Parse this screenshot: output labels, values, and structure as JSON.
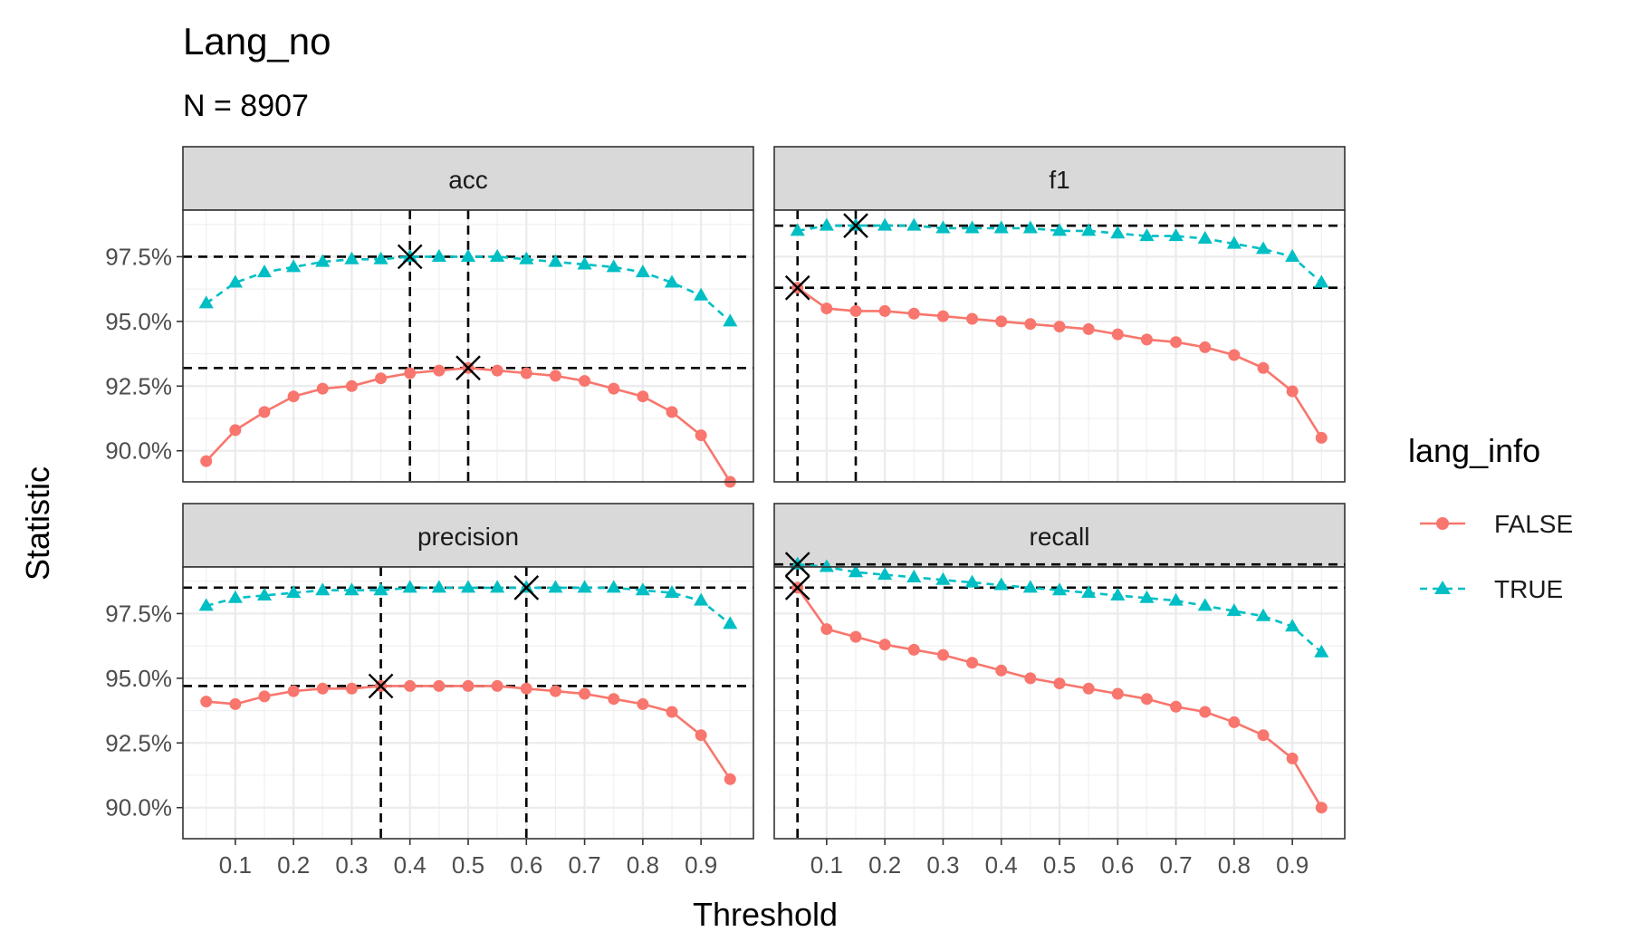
{
  "chart_data": {
    "type": "line",
    "title": "Lang_no",
    "subtitle": "N = 8907",
    "xlabel": "Threshold",
    "ylabel": "Statistic",
    "xlim": [
      0.01,
      0.99
    ],
    "ylim": [
      88.8,
      99.3
    ],
    "x_ticks": [
      0.1,
      0.2,
      0.3,
      0.4,
      0.5,
      0.6,
      0.7,
      0.8,
      0.9
    ],
    "x_tick_labels": [
      "0.1",
      "0.2",
      "0.3",
      "0.4",
      "0.5",
      "0.6",
      "0.7",
      "0.8",
      "0.9"
    ],
    "y_ticks": [
      90.0,
      92.5,
      95.0,
      97.5
    ],
    "y_tick_labels": [
      "90.0%",
      "92.5%",
      "95.0%",
      "97.5%"
    ],
    "grid": true,
    "legend": {
      "title": "lang_info",
      "position": "right",
      "entries": [
        "FALSE",
        "TRUE"
      ]
    },
    "colors": {
      "FALSE": "#F8766D",
      "TRUE": "#00BFC4"
    },
    "x": [
      0.05,
      0.1,
      0.15,
      0.2,
      0.25,
      0.3,
      0.35,
      0.4,
      0.45,
      0.5,
      0.55,
      0.6,
      0.65,
      0.7,
      0.75,
      0.8,
      0.85,
      0.9,
      0.95
    ],
    "panels": [
      {
        "name": "acc",
        "series": [
          {
            "name": "FALSE",
            "values": [
              89.6,
              90.8,
              91.5,
              92.1,
              92.4,
              92.5,
              92.8,
              93.0,
              93.1,
              93.2,
              93.1,
              93.0,
              92.9,
              92.7,
              92.4,
              92.1,
              91.5,
              90.6,
              88.8
            ]
          },
          {
            "name": "TRUE",
            "values": [
              95.7,
              96.5,
              96.9,
              97.1,
              97.3,
              97.4,
              97.4,
              97.5,
              97.5,
              97.5,
              97.5,
              97.4,
              97.3,
              97.2,
              97.1,
              96.9,
              96.5,
              96.0,
              95.0
            ]
          }
        ],
        "best": [
          {
            "series": "FALSE",
            "x": 0.5,
            "y": 93.2
          },
          {
            "series": "TRUE",
            "x": 0.4,
            "y": 97.5
          }
        ]
      },
      {
        "name": "f1",
        "series": [
          {
            "name": "FALSE",
            "values": [
              96.3,
              95.5,
              95.4,
              95.4,
              95.3,
              95.2,
              95.1,
              95.0,
              94.9,
              94.8,
              94.7,
              94.5,
              94.3,
              94.2,
              94.0,
              93.7,
              93.2,
              92.3,
              90.5
            ]
          },
          {
            "name": "TRUE",
            "values": [
              98.5,
              98.7,
              98.7,
              98.7,
              98.7,
              98.6,
              98.6,
              98.6,
              98.6,
              98.5,
              98.5,
              98.4,
              98.3,
              98.3,
              98.2,
              98.0,
              97.8,
              97.5,
              96.5
            ]
          }
        ],
        "best": [
          {
            "series": "FALSE",
            "x": 0.05,
            "y": 96.3
          },
          {
            "series": "TRUE",
            "x": 0.15,
            "y": 98.7
          }
        ]
      },
      {
        "name": "precision",
        "series": [
          {
            "name": "FALSE",
            "values": [
              94.1,
              94.0,
              94.3,
              94.5,
              94.6,
              94.6,
              94.7,
              94.7,
              94.7,
              94.7,
              94.7,
              94.6,
              94.5,
              94.4,
              94.2,
              94.0,
              93.7,
              92.8,
              91.1
            ]
          },
          {
            "name": "TRUE",
            "values": [
              97.8,
              98.1,
              98.2,
              98.3,
              98.4,
              98.4,
              98.4,
              98.5,
              98.5,
              98.5,
              98.5,
              98.5,
              98.5,
              98.5,
              98.5,
              98.4,
              98.3,
              98.0,
              97.1
            ]
          }
        ],
        "best": [
          {
            "series": "FALSE",
            "x": 0.35,
            "y": 94.7
          },
          {
            "series": "TRUE",
            "x": 0.6,
            "y": 98.5
          }
        ]
      },
      {
        "name": "recall",
        "series": [
          {
            "name": "FALSE",
            "values": [
              98.5,
              96.9,
              96.6,
              96.3,
              96.1,
              95.9,
              95.6,
              95.3,
              95.0,
              94.8,
              94.6,
              94.4,
              94.2,
              93.9,
              93.7,
              93.3,
              92.8,
              91.9,
              90.0
            ]
          },
          {
            "name": "TRUE",
            "values": [
              99.4,
              99.3,
              99.1,
              99.0,
              98.9,
              98.8,
              98.7,
              98.6,
              98.5,
              98.4,
              98.3,
              98.2,
              98.1,
              98.0,
              97.8,
              97.6,
              97.4,
              97.0,
              96.0
            ]
          }
        ],
        "best": [
          {
            "series": "FALSE",
            "x": 0.05,
            "y": 98.5
          },
          {
            "series": "TRUE",
            "x": 0.05,
            "y": 99.4
          }
        ]
      }
    ]
  }
}
